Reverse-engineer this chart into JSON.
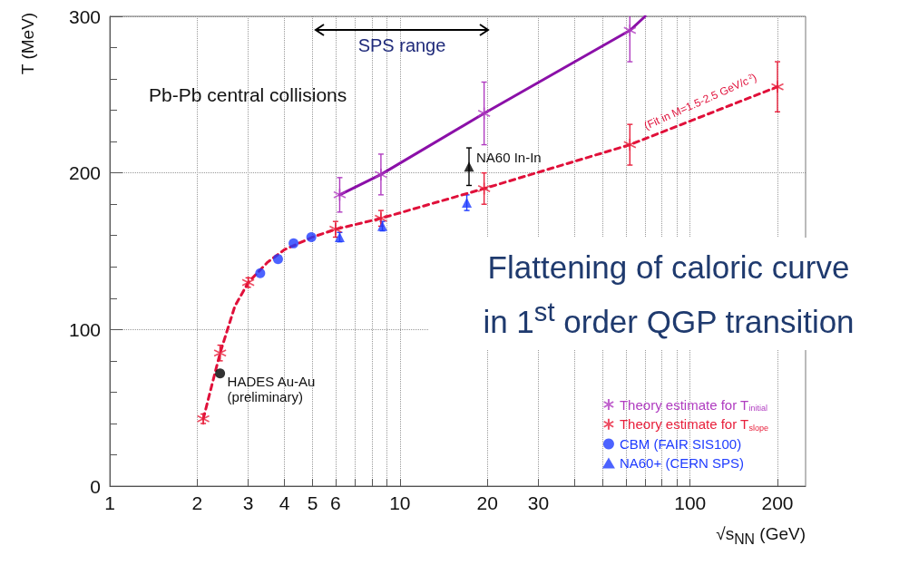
{
  "chart_data": {
    "type": "scatter",
    "xlabel": "√s$_{NN}$ (GeV)",
    "ylabel": "T (MeV)",
    "log": "x",
    "grid": true,
    "legend": "bottom right",
    "xlim": [
      1,
      250
    ],
    "ylim": [
      0,
      300
    ],
    "xticks": [
      1,
      2,
      3,
      4,
      5,
      6,
      {
        "value": 7,
        "label": null
      },
      {
        "value": 8,
        "label": null
      },
      {
        "value": 9,
        "label": null
      },
      10,
      20,
      30,
      {
        "value": 40,
        "label": null
      },
      {
        "value": 50,
        "label": null
      },
      {
        "value": 60,
        "label": null
      },
      {
        "value": 70,
        "label": null
      },
      {
        "value": 80,
        "label": null
      },
      {
        "value": 90,
        "label": null
      },
      100,
      200
    ],
    "yticks": [
      0,
      100,
      200,
      300
    ],
    "series": [
      {
        "name": "Theory estimate for T$_{initial}$",
        "marker": "cross",
        "color": "#b03cc0",
        "x": [
          6.2,
          8.6,
          19.5,
          62
        ],
        "values": [
          186,
          199,
          238,
          291
        ],
        "errors": [
          11,
          13,
          20,
          20
        ]
      },
      {
        "name": "Theory estimate for T$_{slope}$",
        "marker": "cross",
        "color": "#e8203c",
        "x": [
          2.1,
          2.4,
          3,
          6,
          8.6,
          19.5,
          62,
          200
        ],
        "values": [
          43,
          85,
          130,
          164,
          171,
          190,
          218,
          255
        ],
        "errors": [
          3,
          5,
          3,
          5,
          5,
          10,
          13,
          16
        ]
      },
      {
        "name": "CBM (FAIR SIS100)",
        "marker": "circle",
        "color": "#1f3cff",
        "x": [
          3.3,
          3.8,
          4.3,
          4.95
        ],
        "values": [
          136,
          145,
          155,
          159
        ]
      },
      {
        "name": "NA60+ (CERN SPS)",
        "marker": "triangle",
        "color": "#1f3cff",
        "x": [
          6.2,
          8.7,
          17
        ],
        "values": [
          159,
          166,
          181
        ],
        "errors": [
          3,
          3,
          5
        ]
      },
      {
        "marker": "triangle",
        "color": "#000000",
        "x": [
          17.3
        ],
        "values": [
          204
        ],
        "errors": [
          12
        ]
      },
      {
        "marker": "circle",
        "color": "#000000",
        "x": [
          2.4
        ],
        "values": [
          72
        ]
      },
      {
        "type": "line",
        "marker": "none",
        "line_style": "solid",
        "color": "#8b10a8",
        "x": [
          6.2,
          8.6,
          19.5,
          62,
          70
        ],
        "values": [
          186,
          199,
          238,
          291,
          300
        ]
      },
      {
        "type": "line",
        "marker": "none",
        "line_style": "dashed",
        "color": "#e0103a",
        "x": [
          2.1,
          2.4,
          2.7,
          3,
          3.5,
          4,
          5,
          6,
          8.6,
          19.5,
          62,
          200
        ],
        "values": [
          43,
          85,
          115,
          130,
          143,
          151,
          159,
          164,
          171,
          190,
          218,
          255
        ]
      }
    ],
    "annotations": [
      "Pb-Pb central collisions",
      "SPS range",
      "Flattening of caloric curve\nin 1$^{st}$ order QGP transition",
      {
        "text": "NA60 In-In",
        "x": 17.3,
        "y": 210
      },
      {
        "text": "HADES Au-Au\n(preliminary)",
        "x": 2.4,
        "y": 72
      },
      "(Fit in M=1.5-2.5 GeV/c$^{2}$)"
    ]
  }
}
